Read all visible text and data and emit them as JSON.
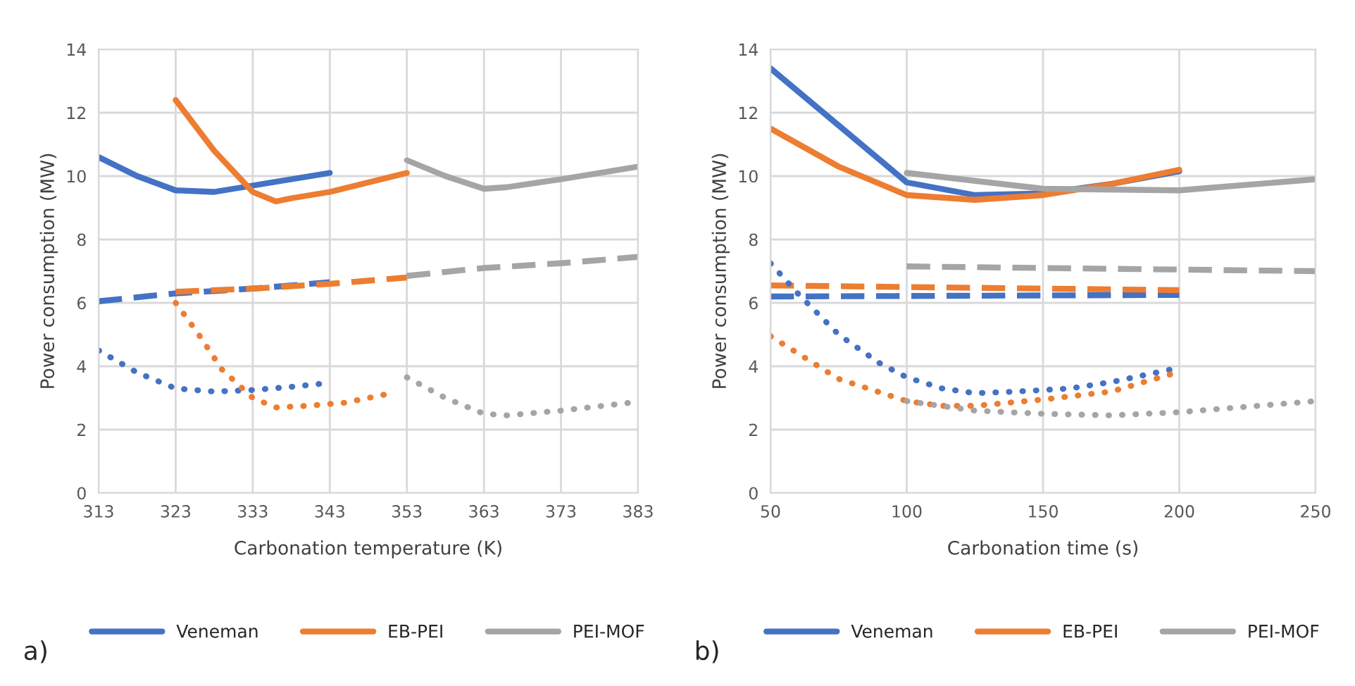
{
  "chart_data": [
    {
      "type": "line",
      "xlabel": "Carbonation temperature (K)",
      "ylabel": "Power consumption (MW)",
      "xlim": [
        313,
        383
      ],
      "xticks": [
        313,
        323,
        333,
        343,
        353,
        363,
        373,
        383
      ],
      "ylim": [
        0,
        14
      ],
      "yticks": [
        0,
        2,
        4,
        6,
        8,
        10,
        12,
        14
      ],
      "grid": true,
      "legend": "bottom",
      "annotations": [
        "a)"
      ],
      "series": [
        {
          "name": "Veneman",
          "color": "#4472c4",
          "line_style": "solid",
          "x": [
            313,
            318,
            323,
            328,
            333,
            338,
            343
          ],
          "values": [
            10.6,
            10.0,
            9.55,
            9.5,
            9.7,
            9.9,
            10.1
          ]
        },
        {
          "name": "EB-PEI",
          "color": "#ed7d31",
          "line_style": "solid",
          "x": [
            323,
            328,
            333,
            336,
            338,
            343,
            348,
            353
          ],
          "values": [
            12.4,
            10.8,
            9.5,
            9.2,
            9.3,
            9.5,
            9.8,
            10.1
          ]
        },
        {
          "name": "PEI-MOF",
          "color": "#a5a5a5",
          "line_style": "solid",
          "x": [
            353,
            358,
            363,
            366,
            373,
            383
          ],
          "values": [
            10.5,
            10.0,
            9.6,
            9.65,
            9.9,
            10.3
          ]
        },
        {
          "color": "#4472c4",
          "line_style": "dashed",
          "x": [
            313,
            323,
            333,
            343
          ],
          "values": [
            6.05,
            6.3,
            6.45,
            6.65
          ]
        },
        {
          "color": "#ed7d31",
          "line_style": "dashed",
          "x": [
            323,
            333,
            343,
            353
          ],
          "values": [
            6.35,
            6.45,
            6.6,
            6.8
          ]
        },
        {
          "color": "#a5a5a5",
          "line_style": "dashed",
          "x": [
            353,
            363,
            373,
            383
          ],
          "values": [
            6.85,
            7.1,
            7.25,
            7.45
          ]
        },
        {
          "color": "#4472c4",
          "line_style": "dotted",
          "x": [
            313,
            318,
            323,
            328,
            333,
            338,
            342
          ],
          "values": [
            4.5,
            3.8,
            3.3,
            3.2,
            3.25,
            3.35,
            3.45
          ]
        },
        {
          "color": "#ed7d31",
          "line_style": "dotted",
          "x": [
            323,
            326,
            329,
            333,
            336,
            340,
            345,
            351
          ],
          "values": [
            6.0,
            5.0,
            3.9,
            3.0,
            2.7,
            2.75,
            2.85,
            3.15
          ]
        },
        {
          "color": "#a5a5a5",
          "line_style": "dotted",
          "x": [
            353,
            358,
            363,
            366,
            373,
            382
          ],
          "values": [
            3.65,
            3.0,
            2.5,
            2.45,
            2.6,
            2.85
          ]
        }
      ]
    },
    {
      "type": "line",
      "xlabel": "Carbonation time (s)",
      "ylabel": "Power consumption (MW)",
      "xlim": [
        50,
        250
      ],
      "xticks": [
        50,
        100,
        150,
        200,
        250
      ],
      "ylim": [
        0,
        14
      ],
      "yticks": [
        0,
        2,
        4,
        6,
        8,
        10,
        12,
        14
      ],
      "grid": true,
      "legend": "bottom",
      "annotations": [
        "b)"
      ],
      "series": [
        {
          "name": "Veneman",
          "color": "#4472c4",
          "line_style": "solid",
          "x": [
            50,
            75,
            100,
            125,
            150,
            175,
            200
          ],
          "values": [
            13.4,
            11.6,
            9.8,
            9.4,
            9.45,
            9.75,
            10.15
          ]
        },
        {
          "name": "EB-PEI",
          "color": "#ed7d31",
          "line_style": "solid",
          "x": [
            50,
            75,
            100,
            125,
            150,
            175,
            200
          ],
          "values": [
            11.5,
            10.3,
            9.4,
            9.25,
            9.4,
            9.75,
            10.2
          ]
        },
        {
          "name": "PEI-MOF",
          "color": "#a5a5a5",
          "line_style": "solid",
          "x": [
            100,
            150,
            200,
            250
          ],
          "values": [
            10.1,
            9.6,
            9.55,
            9.9
          ]
        },
        {
          "color": "#4472c4",
          "line_style": "dashed",
          "x": [
            50,
            200
          ],
          "values": [
            6.2,
            6.25
          ]
        },
        {
          "color": "#ed7d31",
          "line_style": "dashed",
          "x": [
            50,
            200
          ],
          "values": [
            6.55,
            6.4
          ]
        },
        {
          "color": "#a5a5a5",
          "line_style": "dashed",
          "x": [
            100,
            250
          ],
          "values": [
            7.15,
            7.0
          ]
        },
        {
          "color": "#4472c4",
          "line_style": "dotted",
          "x": [
            50,
            60,
            75,
            90,
            100,
            113,
            125,
            140,
            160,
            175,
            197
          ],
          "values": [
            7.25,
            6.3,
            5.0,
            4.1,
            3.65,
            3.3,
            3.15,
            3.2,
            3.3,
            3.5,
            3.9
          ]
        },
        {
          "color": "#ed7d31",
          "line_style": "dotted",
          "x": [
            50,
            75,
            100,
            113,
            125,
            150,
            175,
            197
          ],
          "values": [
            4.95,
            3.6,
            2.9,
            2.75,
            2.75,
            2.95,
            3.2,
            3.75
          ]
        },
        {
          "color": "#a5a5a5",
          "line_style": "dotted",
          "x": [
            100,
            125,
            150,
            175,
            200,
            250
          ],
          "values": [
            2.9,
            2.6,
            2.5,
            2.45,
            2.55,
            2.9
          ]
        }
      ]
    }
  ]
}
